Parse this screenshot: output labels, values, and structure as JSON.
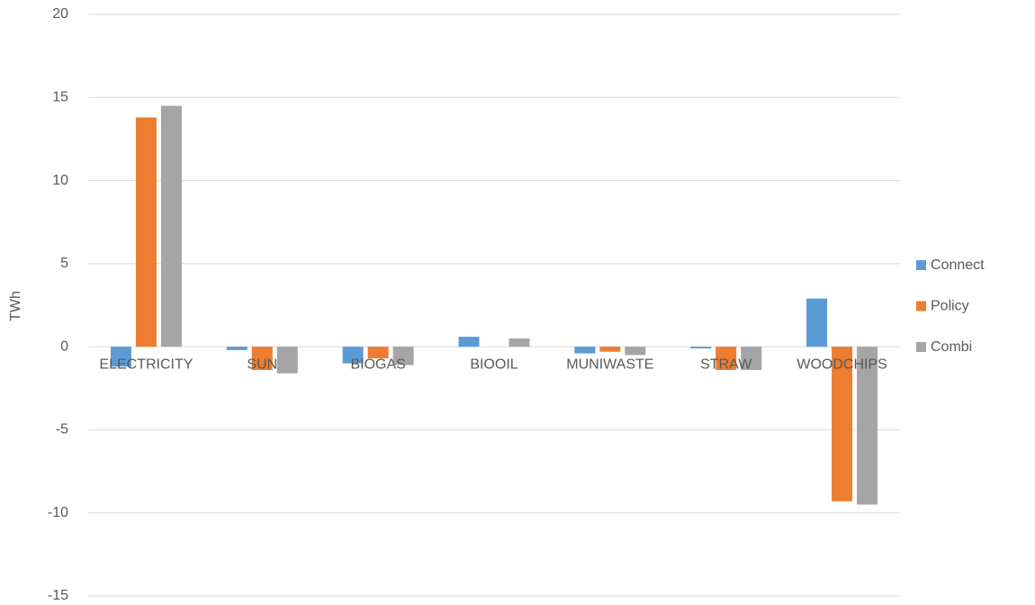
{
  "chart_data": {
    "type": "bar",
    "y_label": "TWh",
    "categories": [
      "ELECTRICITY",
      "SUN",
      "BIOGAS",
      "BIOOIL",
      "MUNIWASTE",
      "STRAW",
      "WOODCHIPS"
    ],
    "series": [
      {
        "name": "Connect",
        "color": "#5b9bd5",
        "values": [
          -1.2,
          -0.2,
          -1.0,
          0.6,
          -0.4,
          -0.1,
          2.9
        ]
      },
      {
        "name": "Policy",
        "color": "#ed7d31",
        "values": [
          13.8,
          -1.4,
          -0.7,
          0,
          -0.3,
          -1.4,
          -9.3
        ]
      },
      {
        "name": "Combi",
        "color": "#a5a5a5",
        "values": [
          14.5,
          -1.6,
          -1.1,
          0.5,
          -0.5,
          -1.4,
          -9.5
        ]
      }
    ],
    "ylim": [
      -15,
      20
    ],
    "yticks": [
      -15,
      -10,
      -5,
      0,
      5,
      10,
      15,
      20
    ],
    "grid": true,
    "legend": "right"
  }
}
